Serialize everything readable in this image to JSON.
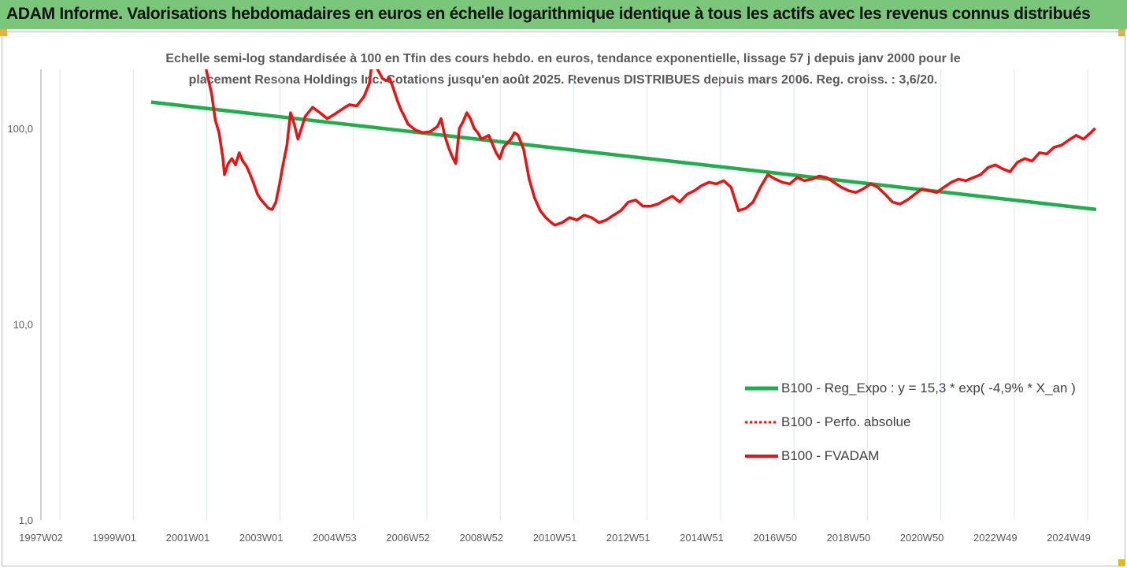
{
  "header": {
    "title": "ADAM Informe. Valorisations hebdomadaires en euros en échelle logarithmique identique à tous les actifs avec les revenus connus distribués"
  },
  "colors": {
    "header_bg": "#7ac67a",
    "regression": "#1fae4b",
    "price": "#ee1111",
    "corner": "#f0b400"
  },
  "chart_data": {
    "type": "line",
    "title": "Echelle semi-log standardisée à 100 en Tfin des cours hebdo. en euros, tendance exponentielle, lissage 57 j depuis janv 2000 pour le placement Resona Holdings Inc. Cotations jusqu'en août 2025. Revenus DISTRIBUES depuis mars 2006. Reg. croiss. : 3,6/20.",
    "title_lines": [
      "Echelle semi-log standardisée à 100 en Tfin des cours hebdo. en euros, tendance exponentielle, lissage 57 j depuis janv 2000 pour le",
      "placement Resona Holdings Inc. Cotations jusqu'en août 2025. Revenus DISTRIBUES depuis mars 2006. Reg. croiss. : 3,6/20."
    ],
    "y_scale": "log",
    "ylim": [
      1,
      200
    ],
    "xlim": [
      1997.0,
      2025.75
    ],
    "grid": {
      "vertical": true,
      "horizontal": false
    },
    "legend_position": "lower-right",
    "y_ticks": [
      {
        "value": 1,
        "label": "1,0"
      },
      {
        "value": 10,
        "label": "10,0"
      },
      {
        "value": 100,
        "label": "100,0"
      }
    ],
    "x_ticks": [
      {
        "value": 1997.0,
        "label": "1997W02"
      },
      {
        "value": 1999.0,
        "label": "1999W01"
      },
      {
        "value": 2001.0,
        "label": "2001W01"
      },
      {
        "value": 2003.0,
        "label": "2003W01"
      },
      {
        "value": 2005.0,
        "label": "2004W53"
      },
      {
        "value": 2007.0,
        "label": "2006W52"
      },
      {
        "value": 2009.0,
        "label": "2008W52"
      },
      {
        "value": 2011.0,
        "label": "2010W51"
      },
      {
        "value": 2013.0,
        "label": "2012W51"
      },
      {
        "value": 2015.0,
        "label": "2014W51"
      },
      {
        "value": 2017.0,
        "label": "2016W50"
      },
      {
        "value": 2019.0,
        "label": "2018W50"
      },
      {
        "value": 2021.0,
        "label": "2020W50"
      },
      {
        "value": 2023.0,
        "label": "2022W49"
      },
      {
        "value": 2025.0,
        "label": "2024W49"
      }
    ],
    "series": [
      {
        "name": "B100 - Reg_Expo : y = 15,3 * exp( -4,9% *  X_an )",
        "style": "solid-green",
        "x": [
          2000.0,
          2025.75
        ],
        "y": [
          136,
          38.5
        ]
      },
      {
        "name": "B100 - Perfo. absolue",
        "style": "dotted-red",
        "x": [],
        "y": []
      },
      {
        "name": "B100 - FVADAM",
        "style": "solid-red",
        "x": [
          2001.5,
          2001.65,
          2001.75,
          2001.85,
          2001.95,
          2002.0,
          2002.1,
          2002.2,
          2002.3,
          2002.4,
          2002.5,
          2002.6,
          2002.7,
          2002.8,
          2002.9,
          2003.0,
          2003.1,
          2003.2,
          2003.3,
          2003.4,
          2003.5,
          2003.6,
          2003.7,
          2003.8,
          2003.9,
          2004.0,
          2004.2,
          2004.4,
          2004.6,
          2004.8,
          2005.0,
          2005.2,
          2005.4,
          2005.6,
          2005.8,
          2005.95,
          2006.0,
          2006.1,
          2006.2,
          2006.3,
          2006.4,
          2006.5,
          2006.6,
          2006.7,
          2006.8,
          2006.9,
          2007.0,
          2007.2,
          2007.4,
          2007.6,
          2007.8,
          2007.9,
          2008.0,
          2008.1,
          2008.2,
          2008.3,
          2008.4,
          2008.5,
          2008.6,
          2008.7,
          2008.8,
          2008.9,
          2009.0,
          2009.2,
          2009.4,
          2009.5,
          2009.6,
          2009.8,
          2009.9,
          2010.0,
          2010.15,
          2010.3,
          2010.45,
          2010.6,
          2010.75,
          2010.9,
          2011.0,
          2011.2,
          2011.4,
          2011.6,
          2011.8,
          2012.0,
          2012.2,
          2012.4,
          2012.6,
          2012.8,
          2013.0,
          2013.2,
          2013.4,
          2013.6,
          2013.8,
          2014.0,
          2014.2,
          2014.4,
          2014.6,
          2014.8,
          2015.0,
          2015.2,
          2015.4,
          2015.6,
          2015.8,
          2016.0,
          2016.2,
          2016.4,
          2016.6,
          2016.8,
          2017.0,
          2017.2,
          2017.4,
          2017.6,
          2017.8,
          2018.0,
          2018.2,
          2018.4,
          2018.6,
          2018.8,
          2019.0,
          2019.2,
          2019.4,
          2019.6,
          2019.8,
          2020.0,
          2020.2,
          2020.4,
          2020.6,
          2020.8,
          2021.0,
          2021.2,
          2021.4,
          2021.6,
          2021.8,
          2022.0,
          2022.2,
          2022.4,
          2022.6,
          2022.8,
          2023.0,
          2023.2,
          2023.4,
          2023.6,
          2023.8,
          2024.0,
          2024.2,
          2024.4,
          2024.6,
          2024.8,
          2025.0,
          2025.2,
          2025.4,
          2025.6,
          2025.72
        ],
        "y": [
          200,
          150,
          110,
          95,
          72,
          58,
          66,
          70,
          65,
          75,
          68,
          64,
          58,
          52,
          46,
          43,
          41,
          39,
          38.5,
          42,
          52,
          66,
          82,
          120,
          105,
          88,
          115,
          128,
          120,
          112,
          118,
          125,
          132,
          130,
          145,
          170,
          205,
          210,
          195,
          180,
          175,
          180,
          160,
          140,
          125,
          115,
          105,
          98,
          95,
          96,
          102,
          112,
          92,
          80,
          72,
          66,
          100,
          108,
          120,
          112,
          100,
          95,
          88,
          92,
          75,
          70,
          80,
          88,
          95,
          92,
          78,
          55,
          44,
          38,
          35,
          33,
          32,
          33,
          35,
          34,
          36,
          35,
          33,
          34,
          36,
          38,
          42,
          43,
          40,
          40,
          41,
          43,
          45,
          42,
          46,
          48,
          51,
          53,
          52,
          54,
          50,
          38,
          39,
          42,
          50,
          58,
          55,
          53,
          52,
          56,
          54,
          55,
          57,
          56,
          53,
          50,
          48,
          47,
          49,
          52,
          50,
          46,
          42,
          41,
          43,
          46,
          49,
          48,
          47,
          50,
          53,
          55,
          54,
          56,
          58,
          63,
          65,
          62,
          60,
          67,
          70,
          68,
          75,
          74,
          80,
          82,
          87,
          92,
          88,
          95,
          100
        ]
      }
    ]
  }
}
